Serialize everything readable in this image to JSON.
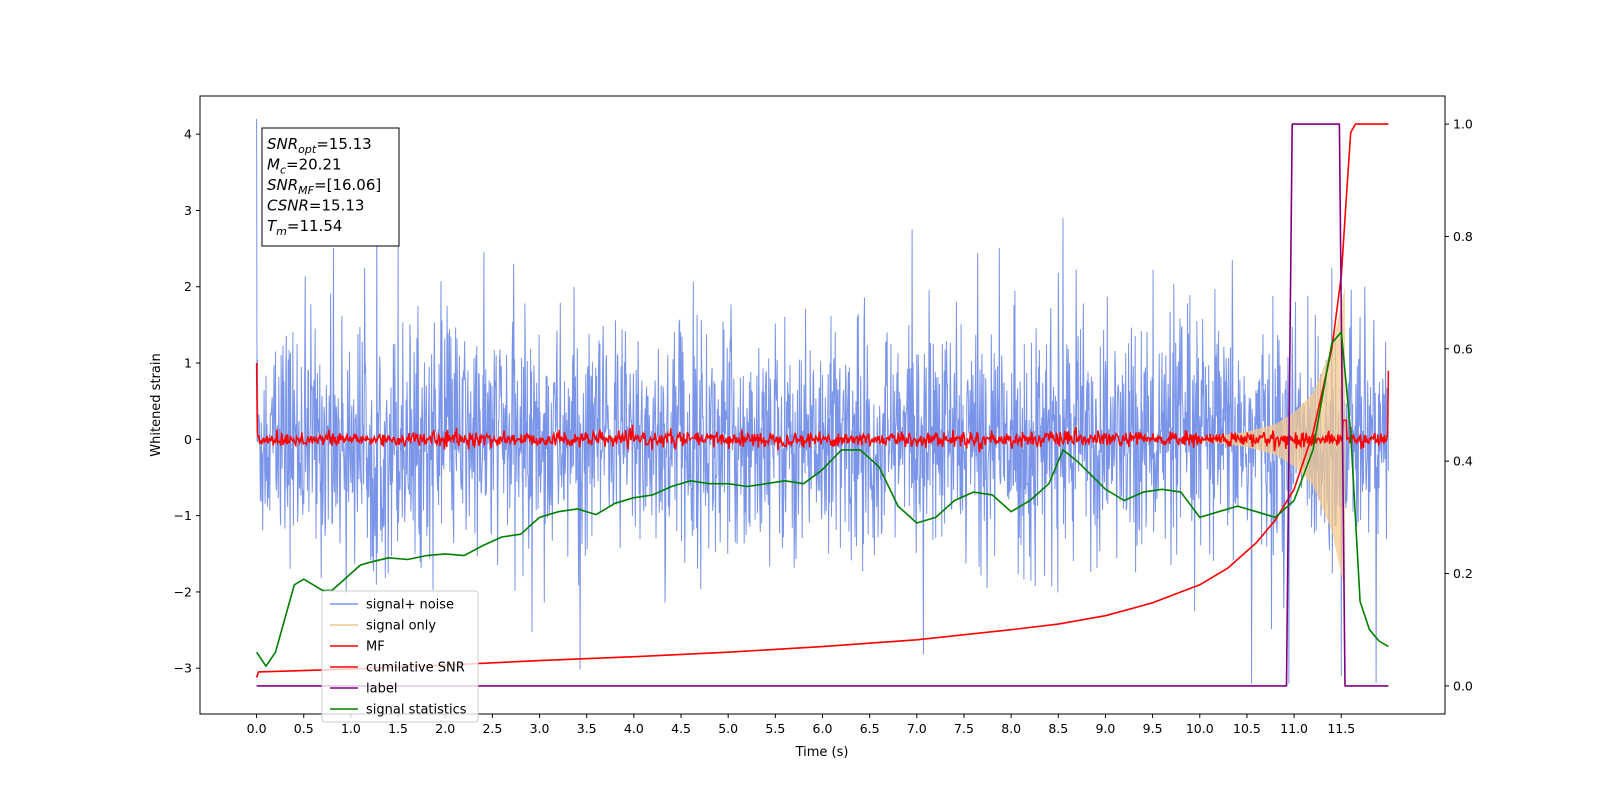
{
  "chart_data": {
    "type": "line",
    "xlabel": "Time (s)",
    "ylabel": "Whitened strain",
    "xlim": [
      -0.6,
      12.6
    ],
    "ylim_left": [
      -3.6,
      4.5
    ],
    "ylim_right": [
      -0.05,
      1.05
    ],
    "x_ticks": [
      "0.0",
      "0.5",
      "1.0",
      "1.5",
      "2.0",
      "2.5",
      "3.0",
      "3.5",
      "4.0",
      "4.5",
      "5.0",
      "5.5",
      "6.0",
      "6.5",
      "7.0",
      "7.5",
      "8.0",
      "8.5",
      "9.0",
      "9.5",
      "10.0",
      "10.5",
      "11.0",
      "11.5"
    ],
    "y_ticks_left": [
      "−3",
      "−2",
      "−1",
      "0",
      "1",
      "2",
      "3",
      "4"
    ],
    "y_ticks_right": [
      "0.0",
      "0.2",
      "0.4",
      "0.6",
      "0.8",
      "1.0"
    ],
    "legend_position": "lower-left",
    "legend": [
      {
        "label": "signal+ noise",
        "color": "#7994e8"
      },
      {
        "label": "signal only",
        "color": "#f5c98e"
      },
      {
        "label": "MF",
        "color": "#ff0000"
      },
      {
        "label": "cumilative SNR",
        "color": "#ff0000"
      },
      {
        "label": "label",
        "color": "#800080"
      },
      {
        "label": "signal statistics",
        "color": "#008000"
      }
    ],
    "annotation": [
      {
        "var": "SNR",
        "sub": "opt",
        "value": "=15.13"
      },
      {
        "var": "M",
        "sub": "c",
        "value": "=20.21"
      },
      {
        "var": "SNR",
        "sub": "MF",
        "value": "=[16.06]"
      },
      {
        "var": "CSNR",
        "sub": "",
        "value": "=15.13"
      },
      {
        "var": "T",
        "sub": "m",
        "value": "=11.54"
      }
    ],
    "series": [
      {
        "name": "signal+ noise",
        "axis": "left",
        "description": "whitened noisy strain, approx. zero-mean, amplitude within about -3.2 to 4.2",
        "x_range": [
          0,
          12.0
        ],
        "peaks": {
          "x": [
            0.0,
            1.5,
            6.95,
            8.55,
            10.55,
            11.4,
            11.5
          ],
          "y": [
            4.2,
            2.6,
            2.75,
            2.9,
            -3.2,
            2.25,
            -3.1
          ]
        }
      },
      {
        "name": "signal only",
        "axis": "left",
        "description": "chirp whose envelope grows toward merger",
        "x": [
          10.0,
          10.5,
          10.8,
          11.0,
          11.2,
          11.4,
          11.54
        ],
        "envelope": [
          0.02,
          0.1,
          0.2,
          0.35,
          0.6,
          1.2,
          2.0
        ]
      },
      {
        "name": "MF",
        "axis": "left",
        "description": "matched filter output, noisy around 0 with amplitude about 0.1, spike near merger",
        "x_range": [
          0,
          12.0
        ],
        "peaks": {
          "x": [
            0.0,
            11.54,
            12.0
          ],
          "y": [
            1.0,
            0.25,
            0.9
          ]
        }
      },
      {
        "name": "cumilative SNR",
        "axis": "right",
        "x": [
          0.0,
          0.02,
          1.0,
          2.0,
          3.0,
          4.0,
          5.0,
          6.0,
          7.0,
          8.0,
          8.5,
          9.0,
          9.5,
          10.0,
          10.3,
          10.6,
          10.8,
          11.0,
          11.2,
          11.4,
          11.5,
          11.55,
          11.6,
          11.65,
          12.0
        ],
        "values": [
          0.015,
          0.025,
          0.03,
          0.037,
          0.045,
          0.052,
          0.06,
          0.07,
          0.082,
          0.1,
          0.11,
          0.125,
          0.148,
          0.18,
          0.21,
          0.255,
          0.295,
          0.35,
          0.45,
          0.6,
          0.73,
          0.86,
          0.985,
          1.0,
          1.0
        ]
      },
      {
        "name": "label",
        "axis": "right",
        "x": [
          0.0,
          10.92,
          10.98,
          11.48,
          11.54,
          12.0
        ],
        "values": [
          0.0,
          0.0,
          1.0,
          1.0,
          0.0,
          0.0
        ]
      },
      {
        "name": "signal statistics",
        "axis": "right",
        "x": [
          0.0,
          0.1,
          0.2,
          0.3,
          0.4,
          0.5,
          0.6,
          0.7,
          0.8,
          0.9,
          1.0,
          1.1,
          1.2,
          1.4,
          1.6,
          1.8,
          2.0,
          2.2,
          2.4,
          2.6,
          2.8,
          3.0,
          3.2,
          3.4,
          3.6,
          3.8,
          4.0,
          4.2,
          4.4,
          4.6,
          4.8,
          5.0,
          5.2,
          5.4,
          5.6,
          5.8,
          6.0,
          6.2,
          6.4,
          6.6,
          6.8,
          7.0,
          7.2,
          7.4,
          7.6,
          7.8,
          8.0,
          8.2,
          8.4,
          8.55,
          8.7,
          9.0,
          9.2,
          9.4,
          9.6,
          9.8,
          10.0,
          10.2,
          10.4,
          10.6,
          10.8,
          11.0,
          11.2,
          11.4,
          11.5,
          11.6,
          11.7,
          11.8,
          11.9,
          12.0
        ],
        "values": [
          0.06,
          0.035,
          0.06,
          0.12,
          0.18,
          0.19,
          0.18,
          0.17,
          0.17,
          0.185,
          0.2,
          0.215,
          0.22,
          0.228,
          0.225,
          0.232,
          0.235,
          0.232,
          0.25,
          0.265,
          0.27,
          0.3,
          0.31,
          0.315,
          0.305,
          0.325,
          0.335,
          0.34,
          0.355,
          0.365,
          0.36,
          0.36,
          0.355,
          0.36,
          0.365,
          0.36,
          0.385,
          0.42,
          0.42,
          0.39,
          0.32,
          0.29,
          0.3,
          0.33,
          0.345,
          0.34,
          0.31,
          0.33,
          0.36,
          0.42,
          0.4,
          0.35,
          0.33,
          0.345,
          0.35,
          0.345,
          0.3,
          0.31,
          0.32,
          0.31,
          0.3,
          0.33,
          0.42,
          0.61,
          0.63,
          0.45,
          0.15,
          0.1,
          0.08,
          0.07
        ]
      }
    ]
  }
}
